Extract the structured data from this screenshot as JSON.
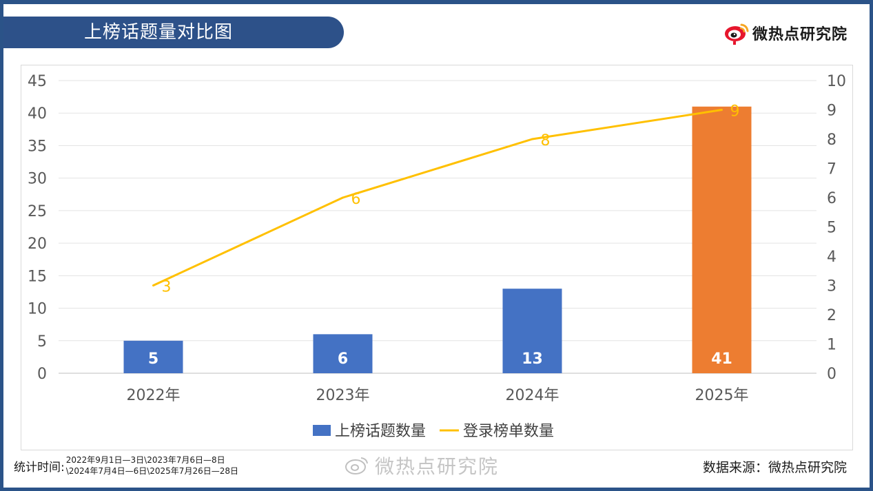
{
  "header": {
    "title": "上榜话题量对比图",
    "brand_name": "微热点研究院"
  },
  "chart_data": {
    "type": "bar",
    "categories": [
      "2022年",
      "2023年",
      "2024年",
      "2025年"
    ],
    "series": [
      {
        "name": "上榜话题数量",
        "type": "bar",
        "axis": "left",
        "values": [
          5,
          6,
          13,
          41
        ],
        "colors": [
          "#4472c4",
          "#4472c4",
          "#4472c4",
          "#ed7d31"
        ]
      },
      {
        "name": "登录榜单数量",
        "type": "line",
        "axis": "right",
        "values": [
          3,
          6,
          8,
          9
        ],
        "color": "#ffc000"
      }
    ],
    "y_left": {
      "ylim": [
        0,
        45
      ],
      "ticks": [
        "0",
        "5",
        "10",
        "15",
        "20",
        "25",
        "30",
        "35",
        "40",
        "45"
      ]
    },
    "y_right": {
      "ylim": [
        0,
        10
      ],
      "ticks": [
        "0",
        "1",
        "2",
        "3",
        "4",
        "5",
        "6",
        "7",
        "8",
        "9",
        "10"
      ]
    },
    "grid": true,
    "legend_position": "bottom"
  },
  "footer": {
    "stats_label": "统计时间:",
    "stats_line1": "2022年9月1日—3日\\2023年7月6日—8日",
    "stats_line2": "\\2024年7月4日—6日\\2025年7月26日—28日",
    "watermark": "微热点研究院",
    "source": "数据来源：微热点研究院"
  }
}
